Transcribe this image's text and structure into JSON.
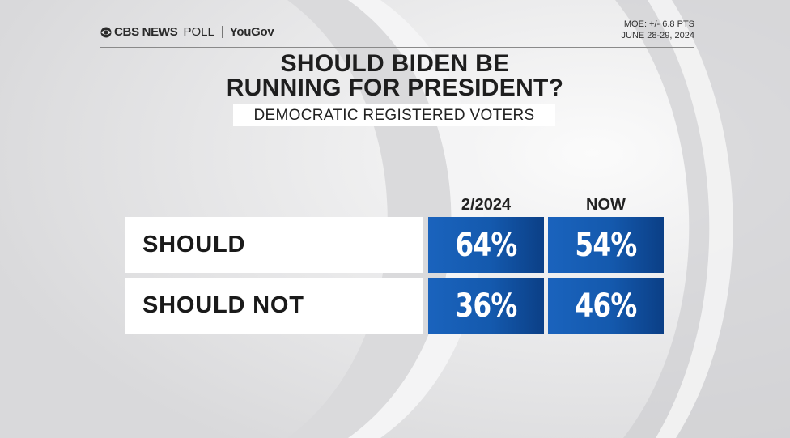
{
  "header": {
    "brand_cbs": "CBS NEWS",
    "brand_poll": "POLL",
    "brand_partner": "YouGov",
    "moe": "MOE: +/- 6.8 PTS",
    "dates": "JUNE 28-29, 2024"
  },
  "chart_data": {
    "type": "table",
    "title": "SHOULD BIDEN BE RUNNING FOR PRESIDENT?",
    "title_lines": [
      "SHOULD BIDEN BE",
      "RUNNING FOR PRESIDENT?"
    ],
    "subtitle": "DEMOCRATIC REGISTERED VOTERS",
    "columns": [
      "2/2024",
      "NOW"
    ],
    "rows": [
      {
        "label": "SHOULD",
        "values": [
          64,
          54
        ],
        "display": [
          "64%",
          "54%"
        ]
      },
      {
        "label": "SHOULD NOT",
        "values": [
          36,
          46
        ],
        "display": [
          "36%",
          "46%"
        ]
      }
    ],
    "cell_color": "#1459ad"
  }
}
